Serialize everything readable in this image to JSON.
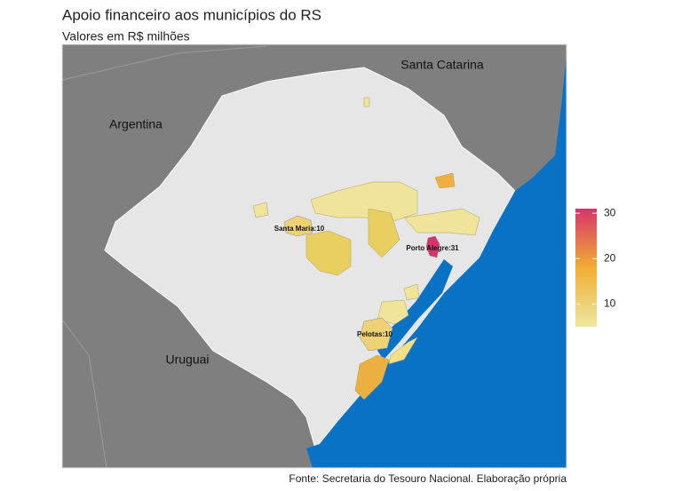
{
  "chart_data": {
    "type": "choropleth",
    "title": "Apoio financeiro aos municípios do RS",
    "subtitle": "Valores em R$ milhões",
    "caption": "Fonte: Secretaria do Tesouro Nacional. Elaboração própria",
    "region_labels": [
      "Santa Catarina",
      "Argentina",
      "Uruguai"
    ],
    "values": [
      10,
      31,
      10
    ],
    "value_labels": [
      "Santa Maria:10",
      "Porto Alegre:31",
      "Pelotas:10"
    ],
    "colorbar": {
      "lim": [
        5,
        31
      ],
      "ticks": [
        10,
        20,
        30
      ],
      "palette": [
        "#eee7a0",
        "#f0ae32",
        "#d8336c"
      ]
    }
  }
}
